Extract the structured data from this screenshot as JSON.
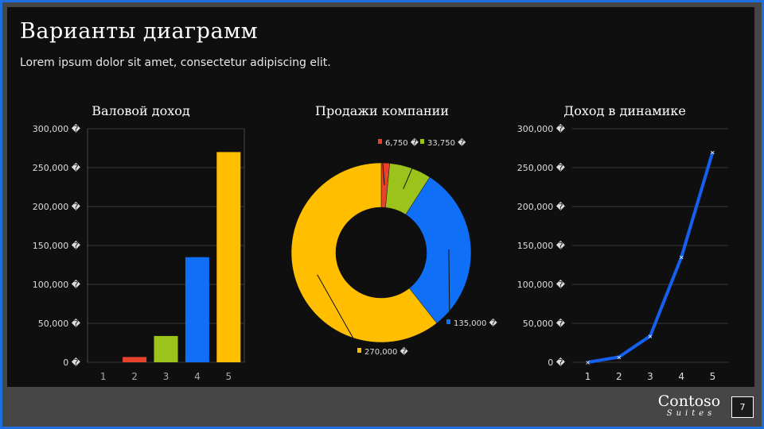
{
  "slide": {
    "title": "Варианты диаграмм",
    "subtitle": "Lorem ipsum dolor sit amet, consectetur adipiscing elit.",
    "page_number": "7"
  },
  "footer": {
    "logo_main": "Contoso",
    "logo_sub": "Suites"
  },
  "colors": {
    "red": "#e8412c",
    "green": "#9cc31c",
    "blue": "#0f6ff7",
    "yellow": "#ffbf00",
    "line": "#1560f0",
    "frame": "#1e6fe0"
  },
  "chart_data": [
    {
      "type": "bar",
      "title": "Валовой доход",
      "categories": [
        "1",
        "2",
        "3",
        "4",
        "5"
      ],
      "values": [
        0,
        6750,
        33750,
        135000,
        270000
      ],
      "ylim": [
        0,
        300000
      ],
      "yticks": [
        "0 �",
        "50,000 �",
        "100,000 �",
        "150,000 �",
        "200,000 �",
        "250,000 �",
        "300,000 �"
      ],
      "grid": true
    },
    {
      "type": "pie",
      "variant": "donut",
      "title": "Продажи компании",
      "values": [
        0,
        6750,
        33750,
        135000,
        270000
      ],
      "labels": [
        "",
        "6,750 �",
        "33,750 �",
        "135,000 �",
        "270,000 �"
      ],
      "colors": [
        "#ffffff",
        "#e8412c",
        "#9cc31c",
        "#0f6ff7",
        "#ffbf00"
      ]
    },
    {
      "type": "line",
      "title": "Доход в динамике",
      "x": [
        "1",
        "2",
        "3",
        "4",
        "5"
      ],
      "values": [
        0,
        6750,
        33750,
        135000,
        270000
      ],
      "ylim": [
        0,
        300000
      ],
      "yticks": [
        "0 �",
        "50,000 �",
        "100,000 �",
        "150,000 �",
        "200,000 �",
        "250,000 �",
        "300,000 �"
      ],
      "grid": true
    }
  ]
}
